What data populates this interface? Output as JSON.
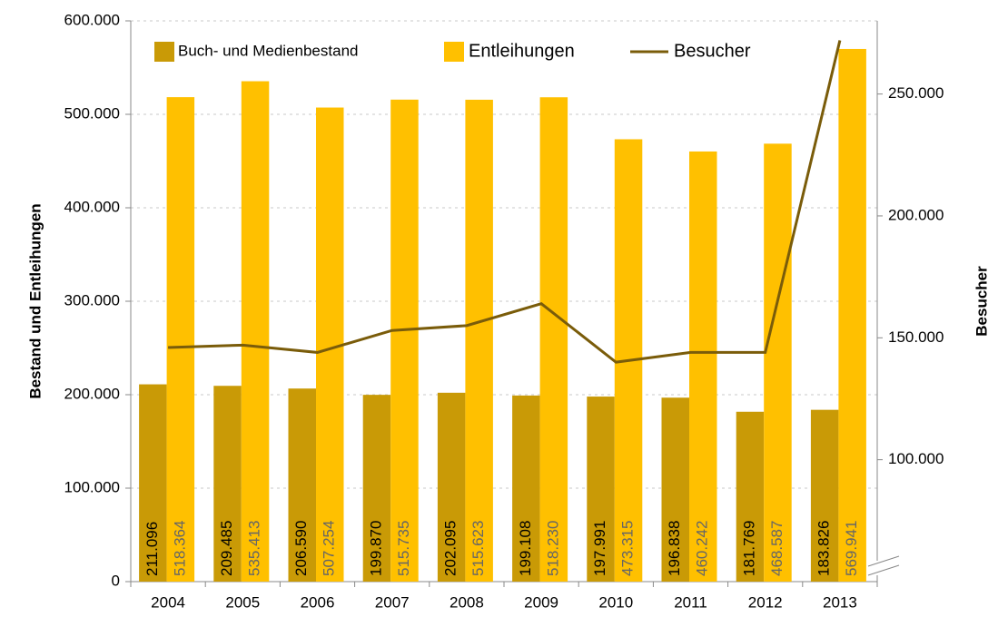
{
  "chart_data": {
    "type": "bar",
    "categories": [
      "2004",
      "2005",
      "2006",
      "2007",
      "2008",
      "2009",
      "2010",
      "2011",
      "2012",
      "2013"
    ],
    "series": [
      {
        "name": "Buch- und Medienbestand",
        "type": "bar",
        "color": "#c99a06",
        "values": [
          211096,
          209485,
          206590,
          199870,
          202095,
          199108,
          197991,
          196838,
          181769,
          183826
        ],
        "value_labels": [
          "211.096",
          "209.485",
          "206.590",
          "199.870",
          "202.095",
          "199.108",
          "197.991",
          "196.838",
          "181.769",
          "183.826"
        ]
      },
      {
        "name": "Entleihungen",
        "type": "bar",
        "color": "#ffc000",
        "values": [
          518364,
          535413,
          507254,
          515735,
          515623,
          518230,
          473315,
          460242,
          468587,
          569941
        ],
        "value_labels": [
          "518.364",
          "535.413",
          "507.254",
          "515.735",
          "515.623",
          "518.230",
          "473.315",
          "460.242",
          "468.587",
          "569.941"
        ]
      },
      {
        "name": "Besucher",
        "type": "line",
        "axis": "y2",
        "color": "#7a5c0a",
        "values": [
          146000,
          147000,
          144000,
          153000,
          155000,
          164000,
          140000,
          144000,
          144000,
          272000
        ]
      }
    ],
    "ylabel": "Bestand und Entleihungen",
    "y2label": "Besucher",
    "ylim": [
      0,
      600000
    ],
    "yticks": [
      0,
      {
        "value": 100000,
        "label": "100.000"
      },
      {
        "value": 200000,
        "label": "200.000"
      },
      {
        "value": 300000,
        "label": "300.000"
      },
      {
        "value": 400000,
        "label": "400.000"
      },
      {
        "value": 500000,
        "label": "500.000"
      },
      {
        "value": 600000,
        "label": "600.000"
      }
    ],
    "y2lim": [
      50000,
      280000
    ],
    "y2ticks": [
      {
        "value": 100000,
        "label": "100.000"
      },
      {
        "value": 150000,
        "label": "150.000"
      },
      {
        "value": 200000,
        "label": "200.000"
      },
      {
        "value": 250000,
        "label": "250.000"
      }
    ],
    "grid": true,
    "legend": "top"
  }
}
